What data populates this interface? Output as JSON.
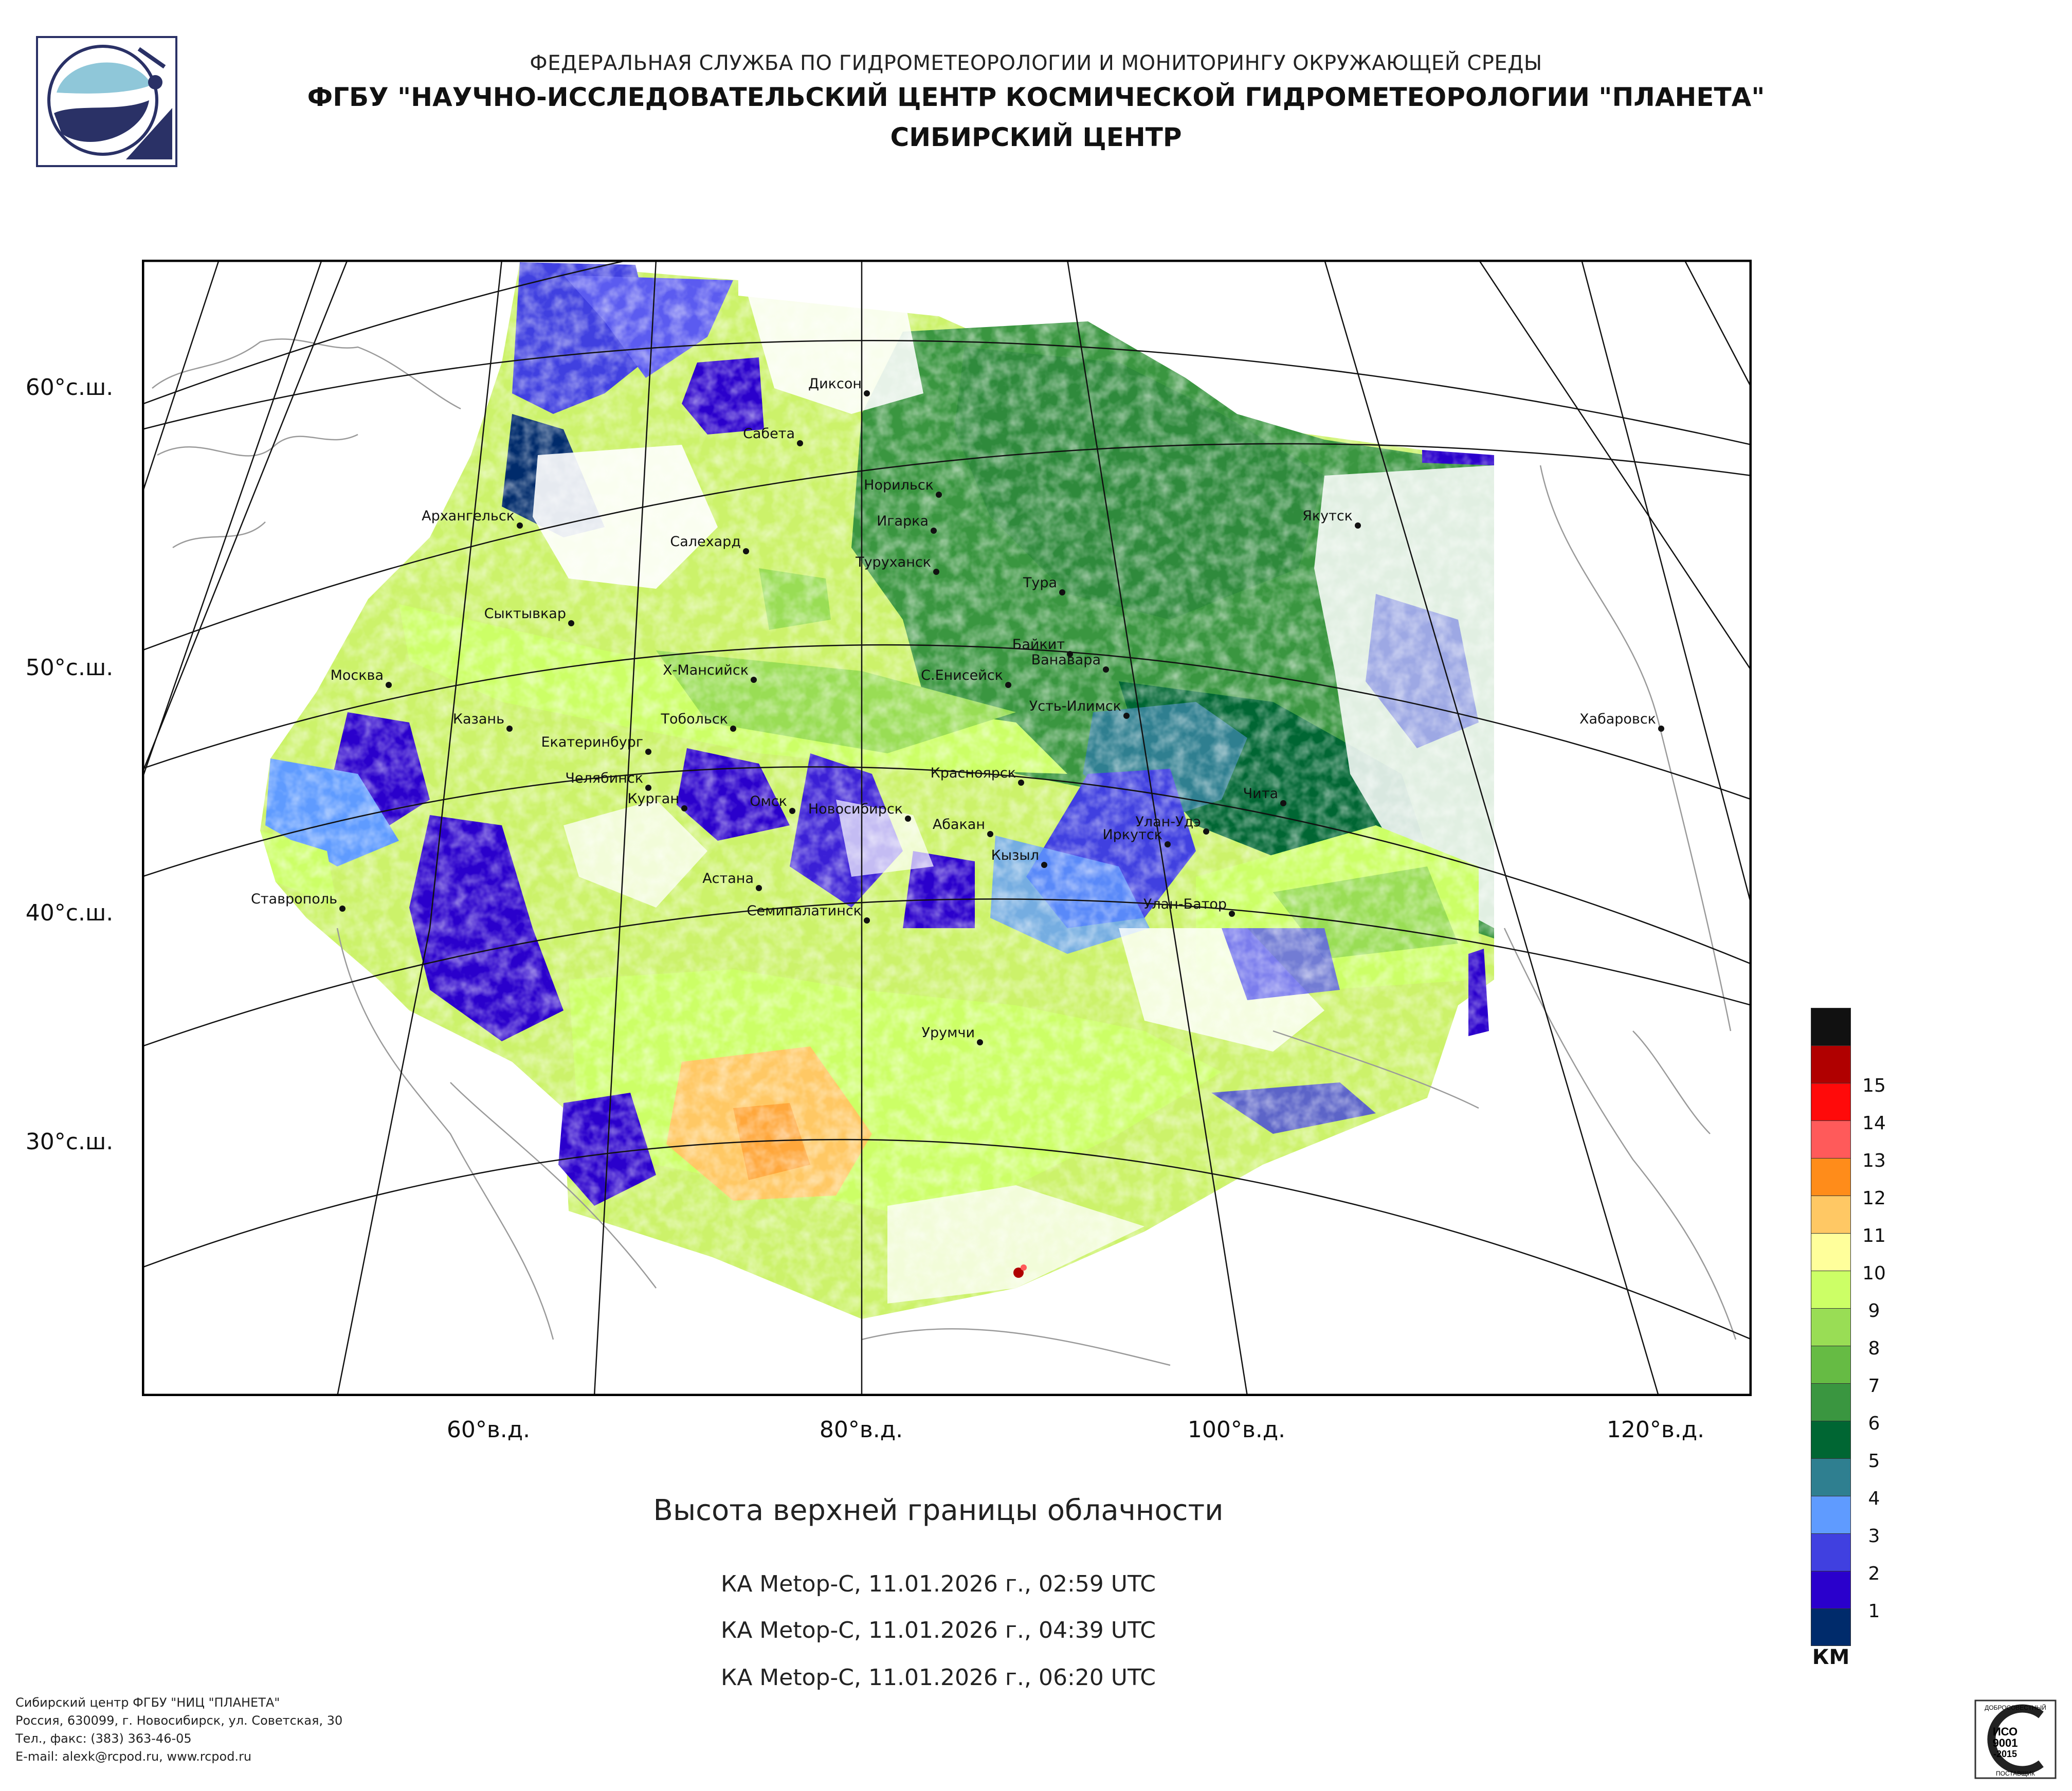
{
  "header": {
    "line1": "ФЕДЕРАЛЬНАЯ СЛУЖБА ПО ГИДРОМЕТЕОРОЛОГИИ И МОНИТОРИНГУ ОКРУЖАЮЩЕЙ СРЕДЫ",
    "line2": "ФГБУ \"НАУЧНО-ИССЛЕДОВАТЕЛЬСКИЙ ЦЕНТР КОСМИЧЕСКОЙ ГИДРОМЕТЕОРОЛОГИИ \"ПЛАНЕТА\"",
    "line3": "СИБИРСКИЙ ЦЕНТР"
  },
  "axes": {
    "latitudes": [
      "60°с.ш.",
      "50°с.ш.",
      "40°с.ш.",
      "30°с.ш."
    ],
    "longitudes": [
      "60°в.д.",
      "80°в.д.",
      "100°в.д.",
      "120°в.д."
    ]
  },
  "map": {
    "cities": [
      {
        "name": "Диксон"
      },
      {
        "name": "Сабета"
      },
      {
        "name": "Норильск"
      },
      {
        "name": "Игарка"
      },
      {
        "name": "Туруханск"
      },
      {
        "name": "Якутск"
      },
      {
        "name": "Архангельск"
      },
      {
        "name": "Салехард"
      },
      {
        "name": "Тура"
      },
      {
        "name": "Сыктывкар"
      },
      {
        "name": "Байкит"
      },
      {
        "name": "Ванавара"
      },
      {
        "name": "Москва"
      },
      {
        "name": "Х-Мансийск"
      },
      {
        "name": "С.Енисейск"
      },
      {
        "name": "Усть-Илимск"
      },
      {
        "name": "Хабаровск"
      },
      {
        "name": "Казань"
      },
      {
        "name": "Екатеринбург"
      },
      {
        "name": "Тобольск"
      },
      {
        "name": "Красноярск"
      },
      {
        "name": "Челябинск"
      },
      {
        "name": "Чита"
      },
      {
        "name": "Курган"
      },
      {
        "name": "Омск"
      },
      {
        "name": "Новосибирск"
      },
      {
        "name": "Абакан"
      },
      {
        "name": "Улан-Удэ"
      },
      {
        "name": "Иркутск"
      },
      {
        "name": "Кызыл"
      },
      {
        "name": "Астана"
      },
      {
        "name": "Ставрополь"
      },
      {
        "name": "Улан-Батор"
      },
      {
        "name": "Семипалатинск"
      },
      {
        "name": "Урумчи"
      }
    ]
  },
  "caption": {
    "title": "Высота верхней границы облачности",
    "passes": [
      "КА Metop-C, 11.01.2026 г., 02:59 UTC",
      "КА Metop-C, 11.01.2026 г., 04:39 UTC",
      "КА Metop-C, 11.01.2026 г., 06:20 UTC"
    ]
  },
  "legend": {
    "unit": "КМ",
    "levels": [
      {
        "label": "",
        "color": "#111111"
      },
      {
        "label": "15",
        "color": "#b00000"
      },
      {
        "label": "14",
        "color": "#ff0a0a"
      },
      {
        "label": "13",
        "color": "#ff5a5a"
      },
      {
        "label": "12",
        "color": "#ff8c1a"
      },
      {
        "label": "11",
        "color": "#ffc864"
      },
      {
        "label": "10",
        "color": "#ffff9b"
      },
      {
        "label": "9",
        "color": "#ccff66"
      },
      {
        "label": "8",
        "color": "#99dd55"
      },
      {
        "label": "7",
        "color": "#66bb44"
      },
      {
        "label": "6",
        "color": "#3a9640"
      },
      {
        "label": "5",
        "color": "#006633"
      },
      {
        "label": "4",
        "color": "#2f7f90"
      },
      {
        "label": "3",
        "color": "#5f9bff"
      },
      {
        "label": "2",
        "color": "#4040e0"
      },
      {
        "label": "1",
        "color": "#2a00cc"
      },
      {
        "label": "",
        "color": "#002b6b"
      }
    ]
  },
  "footer": {
    "line1": "Сибирский центр ФГБУ \"НИЦ \"ПЛАНЕТА\"",
    "line2": "Россия, 630099, г. Новосибирск, ул. Советская, 30",
    "line3": "Тел., факс: (383) 363-46-05",
    "line4": "E-mail: alexk@rcpod.ru, www.rcpod.ru",
    "cert_top": "ДОБРОСОВЕСТНЫЙ",
    "cert_mid1": "ИСО",
    "cert_mid2": "9001",
    "cert_mid3": "-2015",
    "cert_bottom": "ПОСТАВЩИК"
  }
}
